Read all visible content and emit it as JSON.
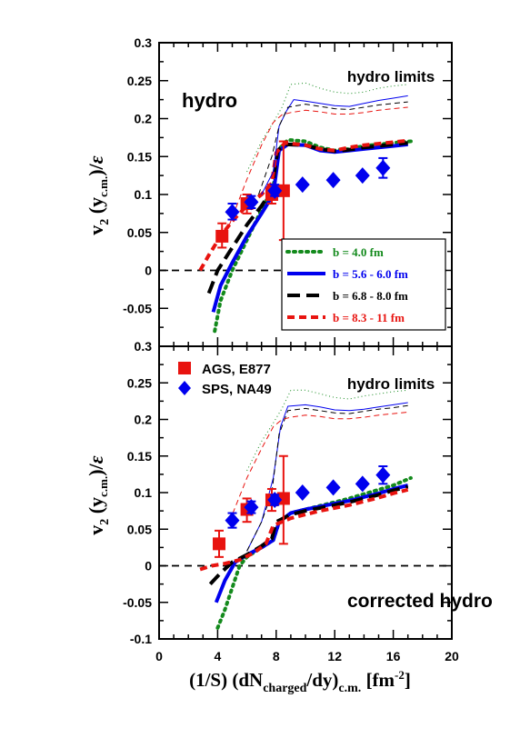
{
  "chart_data": [
    {
      "type": "line",
      "panel_label": "hydro",
      "limits_label": "hydro limits",
      "xlim": [
        0,
        20
      ],
      "ylim": [
        -0.1,
        0.3
      ],
      "xticks": [
        "0",
        "4",
        "8",
        "12",
        "16",
        "20"
      ],
      "yticks": [
        "-0.05",
        "0",
        "0.05",
        "0.1",
        "0.15",
        "0.2",
        "0.25",
        "0.3"
      ],
      "ytick_values": [
        -0.05,
        0,
        0.05,
        0.1,
        0.15,
        0.2,
        0.25,
        0.3
      ],
      "legend": [
        {
          "label": "b = 4.0 fm",
          "color": "#138a1c",
          "style": "dotted"
        },
        {
          "label": "b = 5.6 - 6.0 fm",
          "color": "#0000ee",
          "style": "solid"
        },
        {
          "label": "b = 6.8 - 8.0 fm",
          "color": "#000000",
          "style": "dashed"
        },
        {
          "label": "b = 8.3 - 11 fm",
          "color": "#e8130f",
          "style": "shortdash"
        }
      ],
      "series": [
        {
          "name": "b = 4.0 fm",
          "color": "#138a1c",
          "style": "dotted",
          "width": 4,
          "x": [
            3.8,
            4.2,
            5.0,
            6.0,
            7.0,
            7.8,
            8.2,
            8.8,
            10,
            11,
            12,
            13,
            14,
            15,
            16,
            17.2
          ],
          "y": [
            -0.08,
            -0.04,
            0.0,
            0.04,
            0.08,
            0.11,
            0.16,
            0.172,
            0.17,
            0.162,
            0.158,
            0.16,
            0.164,
            0.166,
            0.168,
            0.17
          ]
        },
        {
          "name": "b = 5.6 - 6.0 fm",
          "color": "#0000ee",
          "style": "solid",
          "width": 4,
          "x": [
            3.7,
            4.2,
            5.0,
            6.0,
            7.0,
            7.8,
            8.2,
            8.8,
            10,
            11,
            12,
            13,
            14,
            15,
            16,
            17
          ],
          "y": [
            -0.055,
            -0.02,
            0.01,
            0.045,
            0.075,
            0.1,
            0.158,
            0.166,
            0.165,
            0.158,
            0.156,
            0.158,
            0.16,
            0.162,
            0.164,
            0.166
          ]
        },
        {
          "name": "b = 6.8 - 8.0 fm",
          "color": "#000000",
          "style": "dashed",
          "width": 4,
          "x": [
            3.4,
            4.0,
            5.0,
            6.0,
            7.0,
            7.7,
            8.1,
            8.6,
            10,
            11,
            12,
            13,
            14,
            15,
            16,
            17
          ],
          "y": [
            -0.03,
            0.0,
            0.03,
            0.06,
            0.085,
            0.105,
            0.158,
            0.166,
            0.165,
            0.16,
            0.157,
            0.159,
            0.162,
            0.164,
            0.166,
            0.168
          ]
        },
        {
          "name": "b = 8.3 - 11 fm",
          "color": "#e8130f",
          "style": "shortdash",
          "width": 4,
          "x": [
            2.8,
            3.4,
            4.2,
            5.0,
            6.0,
            7.0,
            7.7,
            8.0,
            8.6,
            10,
            11,
            12,
            13,
            14,
            15,
            16,
            17
          ],
          "y": [
            0.0,
            0.02,
            0.045,
            0.065,
            0.085,
            0.1,
            0.115,
            0.155,
            0.168,
            0.165,
            0.16,
            0.158,
            0.162,
            0.165,
            0.167,
            0.169,
            0.171
          ]
        },
        {
          "name": "",
          "color": "#138a1c",
          "style": "dotted",
          "width": 1,
          "x": [
            6.0,
            7.0,
            7.8,
            8.4,
            9.0,
            10,
            11,
            12,
            13,
            14,
            15,
            16,
            17
          ],
          "y": [
            0.13,
            0.17,
            0.195,
            0.215,
            0.245,
            0.247,
            0.24,
            0.235,
            0.233,
            0.235,
            0.24,
            0.243,
            0.245
          ]
        },
        {
          "name": "",
          "color": "#0000ee",
          "style": "solid",
          "width": 1,
          "x": [
            7.0,
            7.8,
            8.2,
            8.7,
            9.2,
            10,
            11,
            12,
            13,
            14,
            15,
            16,
            17
          ],
          "y": [
            0.1,
            0.13,
            0.19,
            0.21,
            0.225,
            0.223,
            0.22,
            0.217,
            0.216,
            0.22,
            0.224,
            0.227,
            0.23
          ]
        },
        {
          "name": "",
          "color": "#000000",
          "style": "dashed",
          "width": 1,
          "x": [
            6.8,
            7.7,
            8.2,
            8.8,
            10,
            11,
            12,
            13,
            14,
            15,
            16,
            17
          ],
          "y": [
            0.1,
            0.15,
            0.19,
            0.215,
            0.219,
            0.216,
            0.213,
            0.212,
            0.215,
            0.218,
            0.22,
            0.222
          ]
        },
        {
          "name": "",
          "color": "#e8130f",
          "style": "dashed",
          "width": 1,
          "x": [
            4.8,
            6.0,
            7.0,
            7.8,
            8.4,
            9.0,
            10,
            11,
            12,
            13,
            14,
            15,
            16,
            17
          ],
          "y": [
            0.06,
            0.12,
            0.165,
            0.195,
            0.205,
            0.208,
            0.211,
            0.209,
            0.206,
            0.206,
            0.208,
            0.211,
            0.213,
            0.215
          ]
        }
      ],
      "markers": [
        {
          "name": "AGS, E877",
          "shape": "square",
          "color": "#e8130f",
          "points": [
            {
              "x": 4.3,
              "y": 0.045,
              "lo": 0.03,
              "hi": 0.062
            },
            {
              "x": 6.0,
              "y": 0.088,
              "lo": 0.075,
              "hi": 0.1
            },
            {
              "x": 7.7,
              "y": 0.1,
              "lo": 0.088,
              "hi": 0.113
            },
            {
              "x": 8.5,
              "y": 0.105,
              "lo": 0.04,
              "hi": 0.17
            }
          ]
        },
        {
          "name": "SPS, NA49",
          "shape": "diamond",
          "color": "#0000ee",
          "points": [
            {
              "x": 5.0,
              "y": 0.077,
              "lo": 0.067,
              "hi": 0.088
            },
            {
              "x": 6.3,
              "y": 0.09,
              "lo": 0.082,
              "hi": 0.098
            },
            {
              "x": 7.9,
              "y": 0.105,
              "lo": 0.098,
              "hi": 0.113
            },
            {
              "x": 9.8,
              "y": 0.113,
              "lo": 0.113,
              "hi": 0.113
            },
            {
              "x": 11.9,
              "y": 0.119,
              "lo": 0.119,
              "hi": 0.119
            },
            {
              "x": 13.9,
              "y": 0.125,
              "lo": 0.125,
              "hi": 0.125
            },
            {
              "x": 15.3,
              "y": 0.135,
              "lo": 0.122,
              "hi": 0.148
            }
          ]
        }
      ]
    },
    {
      "type": "line",
      "panel_label": "corrected hydro",
      "limits_label": "hydro limits",
      "xlim": [
        0,
        20
      ],
      "ylim": [
        -0.1,
        0.3
      ],
      "xticks": [
        "0",
        "4",
        "8",
        "12",
        "16",
        "20"
      ],
      "yticks": [
        "-0.1",
        "-0.05",
        "0",
        "0.05",
        "0.1",
        "0.15",
        "0.2",
        "0.25",
        "0.3"
      ],
      "ytick_values": [
        -0.1,
        -0.05,
        0,
        0.05,
        0.1,
        0.15,
        0.2,
        0.25,
        0.3
      ],
      "legend": [
        {
          "label": "AGS, E877",
          "color": "#e8130f",
          "shape": "square"
        },
        {
          "label": "SPS, NA49",
          "color": "#0000ee",
          "shape": "diamond"
        }
      ],
      "series": [
        {
          "name": "b = 4.0 fm",
          "color": "#138a1c",
          "style": "dotted",
          "width": 4,
          "x": [
            4.0,
            4.5,
            5.0,
            5.5,
            6.0,
            7.0,
            7.8,
            8.2,
            9,
            10,
            11,
            12,
            13,
            14,
            15,
            16,
            17.2
          ],
          "y": [
            -0.085,
            -0.06,
            -0.03,
            0.0,
            0.012,
            0.025,
            0.035,
            0.06,
            0.072,
            0.077,
            0.082,
            0.087,
            0.092,
            0.098,
            0.104,
            0.11,
            0.12
          ]
        },
        {
          "name": "b = 5.6 - 6.0 fm",
          "color": "#0000ee",
          "style": "solid",
          "width": 4,
          "x": [
            3.9,
            4.5,
            5.2,
            6.0,
            7.0,
            7.8,
            8.2,
            9,
            10,
            11,
            12,
            13,
            14,
            15,
            16,
            17
          ],
          "y": [
            -0.05,
            -0.02,
            0.005,
            0.015,
            0.025,
            0.035,
            0.06,
            0.072,
            0.077,
            0.081,
            0.085,
            0.089,
            0.094,
            0.099,
            0.105,
            0.11
          ]
        },
        {
          "name": "b = 6.8 - 8.0 fm",
          "color": "#000000",
          "style": "dashed",
          "width": 4,
          "x": [
            3.5,
            4.2,
            5.0,
            6.0,
            7.0,
            7.7,
            8.0,
            9,
            10,
            11,
            12,
            13,
            14,
            15,
            16,
            17
          ],
          "y": [
            -0.025,
            -0.01,
            0.005,
            0.015,
            0.027,
            0.037,
            0.06,
            0.07,
            0.075,
            0.079,
            0.083,
            0.087,
            0.092,
            0.097,
            0.103,
            0.108
          ]
        },
        {
          "name": "b = 8.3 - 11 fm",
          "color": "#e8130f",
          "style": "shortdash",
          "width": 4,
          "x": [
            2.8,
            3.6,
            4.5,
            5.5,
            6.5,
            7.3,
            7.8,
            9,
            10,
            11,
            12,
            13,
            14,
            15,
            16,
            17
          ],
          "y": [
            -0.005,
            0.0,
            0.003,
            0.008,
            0.018,
            0.03,
            0.055,
            0.065,
            0.07,
            0.075,
            0.079,
            0.083,
            0.088,
            0.093,
            0.099,
            0.104
          ]
        },
        {
          "name": "",
          "color": "#138a1c",
          "style": "dotted",
          "width": 1,
          "x": [
            6.0,
            7.0,
            7.8,
            8.4,
            9.0,
            10,
            11,
            12,
            13,
            14,
            15,
            16,
            17
          ],
          "y": [
            0.13,
            0.17,
            0.195,
            0.215,
            0.24,
            0.24,
            0.235,
            0.23,
            0.228,
            0.232,
            0.235,
            0.238,
            0.24
          ]
        },
        {
          "name": "",
          "color": "#0000ee",
          "style": "solid",
          "width": 1,
          "x": [
            6.0,
            7.0,
            7.8,
            8.3,
            8.8,
            10,
            11,
            12,
            13,
            14,
            15,
            16,
            17
          ],
          "y": [
            0.02,
            0.06,
            0.12,
            0.19,
            0.218,
            0.22,
            0.217,
            0.213,
            0.212,
            0.214,
            0.217,
            0.22,
            0.223
          ]
        },
        {
          "name": "",
          "color": "#000000",
          "style": "dashed",
          "width": 1,
          "x": [
            6.0,
            7.0,
            7.7,
            8.2,
            8.8,
            10,
            11,
            12,
            13,
            14,
            15,
            16,
            17
          ],
          "y": [
            0.02,
            0.06,
            0.1,
            0.18,
            0.212,
            0.215,
            0.212,
            0.209,
            0.208,
            0.211,
            0.214,
            0.216,
            0.219
          ]
        },
        {
          "name": "",
          "color": "#e8130f",
          "style": "dashed",
          "width": 1,
          "x": [
            4.8,
            6.0,
            7.0,
            7.8,
            8.4,
            9.0,
            10,
            11,
            12,
            13,
            14,
            15,
            16,
            17
          ],
          "y": [
            0.06,
            0.12,
            0.16,
            0.19,
            0.2,
            0.203,
            0.206,
            0.204,
            0.201,
            0.201,
            0.203,
            0.206,
            0.208,
            0.21
          ]
        }
      ],
      "markers": [
        {
          "name": "AGS, E877",
          "shape": "square",
          "color": "#e8130f",
          "points": [
            {
              "x": 4.1,
              "y": 0.03,
              "lo": 0.012,
              "hi": 0.048
            },
            {
              "x": 6.0,
              "y": 0.077,
              "lo": 0.06,
              "hi": 0.092
            },
            {
              "x": 7.7,
              "y": 0.09,
              "lo": 0.075,
              "hi": 0.105
            },
            {
              "x": 8.5,
              "y": 0.092,
              "lo": 0.03,
              "hi": 0.15
            }
          ]
        },
        {
          "name": "SPS, NA49",
          "shape": "diamond",
          "color": "#0000ee",
          "points": [
            {
              "x": 5.0,
              "y": 0.062,
              "lo": 0.052,
              "hi": 0.072
            },
            {
              "x": 6.3,
              "y": 0.08,
              "lo": 0.072,
              "hi": 0.088
            },
            {
              "x": 7.9,
              "y": 0.09,
              "lo": 0.083,
              "hi": 0.097
            },
            {
              "x": 9.8,
              "y": 0.1,
              "lo": 0.1,
              "hi": 0.1
            },
            {
              "x": 11.9,
              "y": 0.107,
              "lo": 0.107,
              "hi": 0.107
            },
            {
              "x": 13.9,
              "y": 0.112,
              "lo": 0.112,
              "hi": 0.112
            },
            {
              "x": 15.3,
              "y": 0.124,
              "lo": 0.112,
              "hi": 0.136
            }
          ]
        }
      ]
    }
  ],
  "axes": {
    "ylabel_main": "v",
    "ylabel_sub": "2",
    "ylabel_paren": "(y",
    "ylabel_paren_sub": "c.m.",
    "ylabel_tail": ")/",
    "ylabel_eps": "ε",
    "xlabel_a": "(1/S) (dN",
    "xlabel_sub": "charged",
    "xlabel_b": "/dy)",
    "xlabel_sub2": "c.m.",
    "xlabel_unit": "[fm",
    "xlabel_unit_sup": "-2",
    "xlabel_unit_close": "]"
  }
}
